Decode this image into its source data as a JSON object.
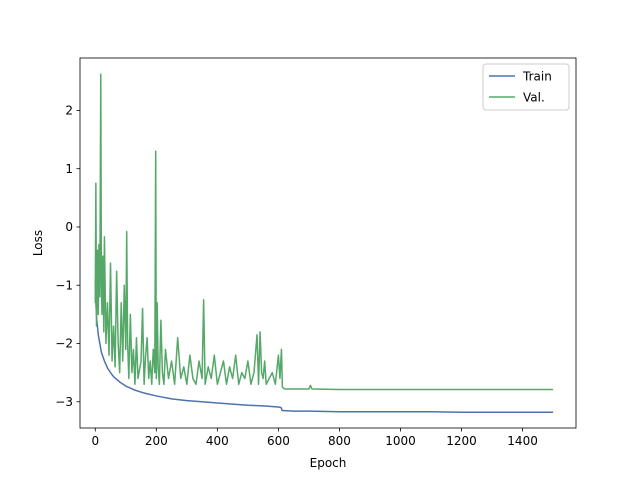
{
  "chart_data": {
    "type": "line",
    "title": "",
    "xlabel": "Epoch",
    "ylabel": "Loss",
    "xlim": [
      -50,
      1575
    ],
    "ylim": [
      -3.45,
      2.9
    ],
    "xticks": [
      0,
      200,
      400,
      600,
      800,
      1000,
      1200,
      1400
    ],
    "yticks": [
      -3,
      -2,
      -1,
      0,
      1,
      2
    ],
    "legend": {
      "placement": "top-right"
    },
    "grid": false,
    "series": [
      {
        "name": "Train",
        "color": "#4c72b0",
        "x": [
          0,
          2,
          5,
          10,
          15,
          20,
          30,
          40,
          50,
          60,
          80,
          100,
          130,
          160,
          200,
          250,
          300,
          350,
          400,
          450,
          500,
          550,
          600,
          609,
          612,
          650,
          700,
          800,
          900,
          1000,
          1100,
          1200,
          1300,
          1400,
          1500
        ],
        "values": [
          -0.9,
          -1.3,
          -1.6,
          -1.85,
          -2.0,
          -2.15,
          -2.3,
          -2.42,
          -2.5,
          -2.57,
          -2.66,
          -2.73,
          -2.8,
          -2.85,
          -2.9,
          -2.95,
          -2.98,
          -3.0,
          -3.02,
          -3.04,
          -3.06,
          -3.07,
          -3.09,
          -3.1,
          -3.15,
          -3.16,
          -3.16,
          -3.17,
          -3.17,
          -3.17,
          -3.17,
          -3.18,
          -3.18,
          -3.18,
          -3.18
        ]
      },
      {
        "name": "Val.",
        "color": "#55a868",
        "x": [
          0,
          2,
          4,
          7,
          10,
          12,
          15,
          18,
          20,
          22,
          25,
          28,
          30,
          35,
          40,
          45,
          50,
          55,
          60,
          65,
          70,
          75,
          80,
          85,
          90,
          95,
          100,
          103,
          106,
          110,
          115,
          120,
          125,
          130,
          135,
          140,
          150,
          155,
          160,
          165,
          170,
          175,
          180,
          185,
          190,
          195,
          198,
          200,
          203,
          206,
          210,
          215,
          220,
          225,
          230,
          240,
          250,
          260,
          270,
          280,
          290,
          300,
          310,
          320,
          330,
          340,
          350,
          355,
          360,
          370,
          380,
          390,
          400,
          410,
          420,
          430,
          440,
          450,
          460,
          470,
          480,
          490,
          500,
          510,
          520,
          530,
          535,
          540,
          545,
          550,
          555,
          560,
          570,
          580,
          590,
          600,
          605,
          610,
          613,
          620,
          650,
          700,
          705,
          710,
          800,
          900,
          1000,
          1100,
          1200,
          1300,
          1400,
          1500
        ],
        "values": [
          -1.3,
          0.75,
          -1.7,
          -0.4,
          -1.5,
          -0.3,
          -1.2,
          2.62,
          -0.9,
          -1.5,
          -0.5,
          -1.8,
          -0.17,
          -2.0,
          -1.3,
          -2.2,
          -0.62,
          -2.3,
          -1.7,
          -2.4,
          -0.76,
          -2.0,
          -2.5,
          -1.3,
          -2.3,
          -1.0,
          -2.1,
          -0.08,
          -2.0,
          -2.6,
          -1.5,
          -2.5,
          -2.1,
          -2.7,
          -1.9,
          -2.6,
          -2.3,
          -1.4,
          -2.7,
          -2.2,
          -1.9,
          -2.6,
          -2.3,
          -2.7,
          -2.1,
          -2.5,
          1.3,
          -2.6,
          -1.3,
          -2.4,
          -2.7,
          -1.6,
          -2.5,
          -2.7,
          -2.1,
          -2.6,
          -2.3,
          -2.7,
          -1.9,
          -2.6,
          -2.4,
          -2.7,
          -2.2,
          -2.6,
          -2.7,
          -2.3,
          -2.6,
          -1.25,
          -2.7,
          -2.4,
          -2.6,
          -2.2,
          -2.7,
          -2.5,
          -2.3,
          -2.7,
          -2.4,
          -2.6,
          -2.2,
          -2.7,
          -2.5,
          -2.6,
          -2.3,
          -2.7,
          -2.5,
          -1.85,
          -2.7,
          -1.8,
          -2.5,
          -2.6,
          -2.3,
          -2.7,
          -2.6,
          -2.5,
          -2.7,
          -2.2,
          -2.6,
          -2.1,
          -2.75,
          -2.78,
          -2.78,
          -2.78,
          -2.72,
          -2.78,
          -2.79,
          -2.79,
          -2.79,
          -2.79,
          -2.79,
          -2.79,
          -2.79,
          -2.79
        ]
      }
    ]
  }
}
